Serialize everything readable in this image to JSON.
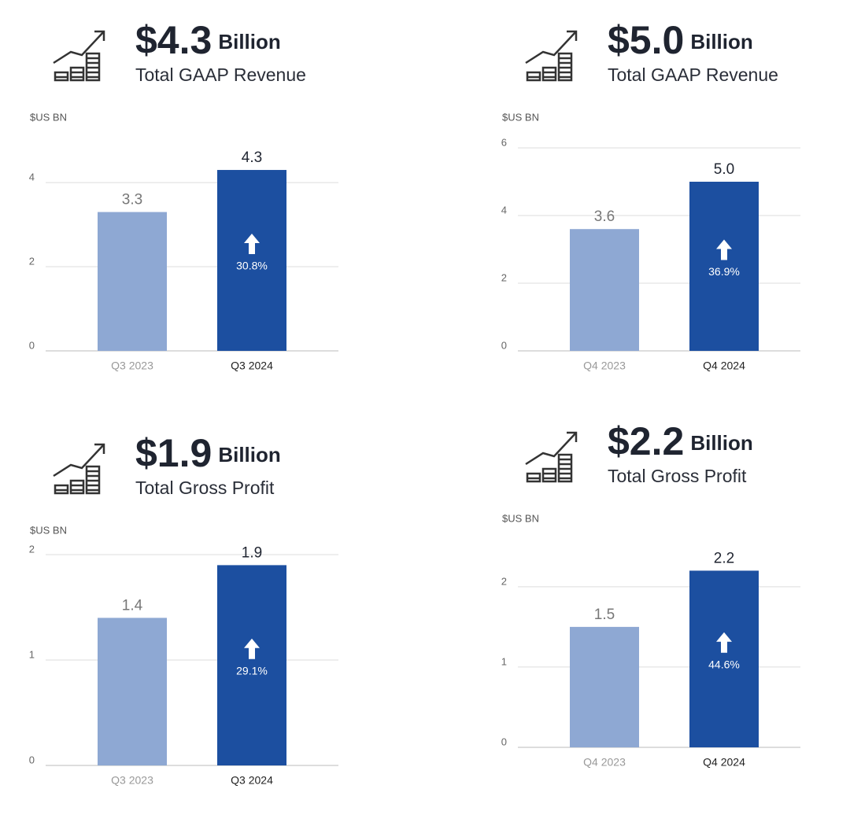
{
  "chart_data": [
    {
      "type": "bar",
      "headline": "$4.3",
      "headline_unit": "Billion",
      "title": "Total GAAP Revenue",
      "y_label": "$US BN",
      "categories": [
        "Q3 2023",
        "Q3 2024"
      ],
      "values": [
        3.3,
        4.3
      ],
      "colors": [
        "#8ea8d3",
        "#1c4fa0"
      ],
      "growth": "30.8%",
      "ylim": [
        0,
        4.6
      ],
      "yticks": [
        0,
        2,
        4
      ],
      "grid": true
    },
    {
      "type": "bar",
      "headline": "$5.0",
      "headline_unit": "Billion",
      "title": "Total GAAP Revenue",
      "y_label": "$US BN",
      "categories": [
        "Q4 2023",
        "Q4 2024"
      ],
      "values": [
        3.6,
        5.0
      ],
      "value_labels": [
        "3.6",
        "5.0"
      ],
      "colors": [
        "#8ea8d3",
        "#1c4fa0"
      ],
      "growth": "36.9%",
      "ylim": [
        0,
        6
      ],
      "yticks": [
        0,
        2,
        4,
        6
      ],
      "grid": true
    },
    {
      "type": "bar",
      "headline": "$1.9",
      "headline_unit": "Billion",
      "title": "Total Gross Profit",
      "y_label": "$US BN",
      "categories": [
        "Q3 2023",
        "Q3 2024"
      ],
      "values": [
        1.4,
        1.9
      ],
      "colors": [
        "#8ea8d3",
        "#1c4fa0"
      ],
      "growth": "29.1%",
      "ylim": [
        0,
        2
      ],
      "yticks": [
        0,
        1,
        2
      ],
      "grid": true
    },
    {
      "type": "bar",
      "headline": "$2.2",
      "headline_unit": "Billion",
      "title": "Total Gross Profit",
      "y_label": "$US BN",
      "categories": [
        "Q4 2023",
        "Q4 2024"
      ],
      "values": [
        1.5,
        2.2
      ],
      "colors": [
        "#8ea8d3",
        "#1c4fa0"
      ],
      "growth": "44.6%",
      "ylim": [
        0,
        2.4
      ],
      "yticks": [
        0,
        1,
        2
      ],
      "grid": true
    }
  ]
}
